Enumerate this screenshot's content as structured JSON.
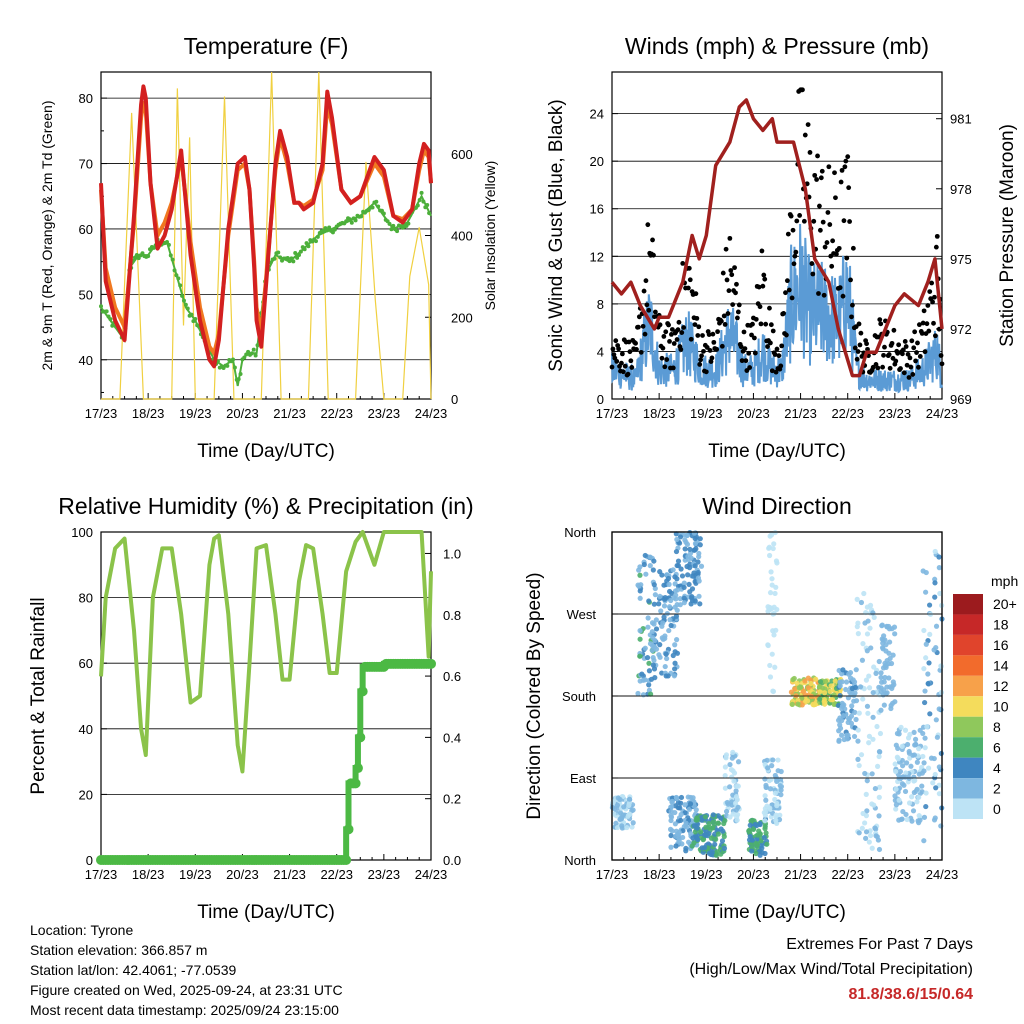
{
  "chart_data": [
    {
      "id": "temperature",
      "type": "line",
      "title": "Temperature (F)",
      "xlabel": "Time (Day/UTC)",
      "ylabel": "2m & 9m T (Red, Orange) & 2m Td (Green)",
      "ylabel_right": "Solar Insolation (Yellow)",
      "xlim": [
        0,
        7
      ],
      "x_ticks": [
        "17/23",
        "18/23",
        "19/23",
        "20/23",
        "21/23",
        "22/23",
        "23/23",
        "24/23"
      ],
      "ylim": [
        34,
        84
      ],
      "y_ticks": [
        40,
        50,
        60,
        70,
        80
      ],
      "y2lim": [
        0,
        800
      ],
      "y2_ticks": [
        0,
        200,
        400,
        600
      ],
      "gridlines": [
        40,
        50,
        60,
        70,
        80
      ],
      "series": [
        {
          "name": "2m T",
          "color": "#d32020",
          "x": [
            0,
            0.1,
            0.3,
            0.5,
            0.7,
            0.85,
            0.9,
            0.95,
            1.05,
            1.2,
            1.35,
            1.5,
            1.7,
            1.9,
            2.1,
            2.3,
            2.4,
            2.5,
            2.7,
            2.9,
            3.05,
            3.15,
            3.25,
            3.3,
            3.4,
            3.7,
            3.8,
            3.95,
            4.1,
            4.2,
            4.3,
            4.5,
            4.7,
            4.8,
            4.9,
            5.1,
            5.3,
            5.5,
            5.8,
            6.0,
            6.2,
            6.4,
            6.6,
            6.75,
            6.85,
            6.95,
            7.0
          ],
          "y": [
            67,
            52,
            46,
            43,
            62,
            79,
            81.8,
            80,
            67,
            57,
            59,
            63,
            72,
            56,
            46,
            40,
            39,
            43,
            60,
            70,
            71,
            66,
            54,
            46,
            42,
            70,
            75,
            71,
            64,
            64,
            63,
            64,
            70,
            81,
            77,
            66,
            64,
            65,
            71,
            69,
            62,
            61,
            63,
            70,
            73,
            72,
            67
          ]
        },
        {
          "name": "9m T",
          "color": "#f07820",
          "x": [
            0,
            0.1,
            0.3,
            0.5,
            0.7,
            0.85,
            0.9,
            0.95,
            1.05,
            1.2,
            1.35,
            1.5,
            1.7,
            1.9,
            2.1,
            2.3,
            2.4,
            2.5,
            2.7,
            2.9,
            3.05,
            3.15,
            3.25,
            3.3,
            3.4,
            3.7,
            3.8,
            3.95,
            4.1,
            4.2,
            4.3,
            4.5,
            4.7,
            4.8,
            4.9,
            5.1,
            5.3,
            5.5,
            5.8,
            6.0,
            6.2,
            6.4,
            6.6,
            6.75,
            6.85,
            6.95,
            7.0
          ],
          "y": [
            66,
            54,
            48,
            45,
            61,
            77,
            79.5,
            78,
            67,
            59,
            61,
            64,
            71,
            58,
            48,
            42,
            41,
            44,
            59,
            69,
            70,
            66,
            55,
            48,
            44,
            69,
            74,
            70,
            64,
            64,
            63.5,
            64.5,
            69,
            79,
            76,
            66,
            64,
            65,
            70,
            68,
            62,
            61.5,
            63,
            69,
            72,
            71,
            67
          ]
        },
        {
          "name": "2m Td",
          "color": "#4caf3a",
          "x": [
            0,
            0.2,
            0.4,
            0.5,
            0.6,
            0.8,
            1.0,
            1.2,
            1.4,
            1.6,
            1.8,
            2.0,
            2.2,
            2.4,
            2.6,
            2.8,
            2.9,
            3.0,
            3.1,
            3.3,
            3.5,
            3.7,
            4.0,
            4.3,
            4.6,
            4.9,
            5.2,
            5.5,
            5.8,
            6.0,
            6.2,
            6.5,
            6.8,
            7.0
          ],
          "y": [
            48,
            46,
            44,
            43,
            54,
            56,
            56,
            58,
            58,
            53,
            48,
            46,
            43,
            40,
            39,
            40,
            36,
            40,
            41,
            41,
            53,
            56,
            55,
            57,
            59,
            60,
            61,
            62,
            64,
            62,
            60,
            61,
            65,
            62
          ]
        },
        {
          "name": "Solar Insolation",
          "color": "#f0d040",
          "axis": "right",
          "x": [
            0,
            0.4,
            0.65,
            0.9,
            1.15,
            1.5,
            1.62,
            1.75,
            1.88,
            2.0,
            2.4,
            2.62,
            2.82,
            3.0,
            3.4,
            3.62,
            3.82,
            4.0,
            4.4,
            4.62,
            4.82,
            5.0,
            5.4,
            5.62,
            5.82,
            6.0,
            6.4,
            6.55,
            6.75,
            6.95,
            7.0
          ],
          "y": [
            0,
            0,
            700,
            0,
            0,
            0,
            760,
            180,
            640,
            0,
            0,
            740,
            0,
            0,
            0,
            800,
            0,
            0,
            0,
            800,
            0,
            0,
            0,
            580,
            240,
            0,
            0,
            300,
            420,
            280,
            0
          ]
        }
      ]
    },
    {
      "id": "winds",
      "type": "line+scatter",
      "title": "Winds (mph) & Pressure (mb)",
      "xlabel": "Time (Day/UTC)",
      "ylabel": "Sonic Wind & Gust (Blue, Black)",
      "ylabel_right": "Station Pressure (Maroon)",
      "xlim": [
        0,
        7
      ],
      "x_ticks": [
        "17/23",
        "18/23",
        "19/23",
        "20/23",
        "21/23",
        "22/23",
        "23/23",
        "24/23"
      ],
      "ylim": [
        0,
        27.5
      ],
      "y_ticks": [
        0,
        4,
        8,
        12,
        16,
        20,
        24
      ],
      "y2lim": [
        969,
        983
      ],
      "y2_ticks": [
        969,
        972,
        975,
        978,
        981
      ],
      "gridlines": [
        4,
        8,
        12,
        16,
        20,
        24
      ],
      "series": [
        {
          "name": "Sonic Wind",
          "color": "#5b9bd5",
          "x": [
            0,
            0.5,
            0.8,
            1.0,
            1.3,
            1.6,
            1.9,
            2.2,
            2.5,
            2.8,
            3.0,
            3.2,
            3.4,
            3.6,
            3.8,
            4.0,
            4.2,
            4.5,
            4.8,
            5.0,
            5.2,
            5.4,
            5.7,
            6.0,
            6.3,
            6.6,
            6.9,
            7.0
          ],
          "y": [
            3,
            2,
            8,
            3,
            3,
            6,
            3,
            3,
            7,
            3,
            3,
            5,
            3,
            3,
            10,
            12,
            9,
            9,
            8,
            11,
            3,
            2,
            2,
            2,
            2,
            3,
            5,
            2
          ]
        },
        {
          "name": "Gust",
          "color": "#000000",
          "x": [
            0,
            0.5,
            0.8,
            1.0,
            1.3,
            1.6,
            1.9,
            2.2,
            2.5,
            2.8,
            3.0,
            3.2,
            3.4,
            3.6,
            3.8,
            4.0,
            4.2,
            4.5,
            4.8,
            5.0,
            5.2,
            5.4,
            5.7,
            6.0,
            6.3,
            6.6,
            6.9,
            7.0
          ],
          "y": [
            5,
            4,
            14,
            6,
            5,
            12,
            5,
            5,
            13,
            5,
            6,
            12,
            5,
            5,
            16,
            24,
            20,
            17,
            16,
            18,
            6,
            4,
            6,
            5,
            4,
            6,
            12,
            5
          ]
        },
        {
          "name": "Station Pressure",
          "color": "#a0201e",
          "axis": "right",
          "x": [
            0,
            0.2,
            0.4,
            0.6,
            0.9,
            1.0,
            1.2,
            1.5,
            1.7,
            1.85,
            2.0,
            2.2,
            2.5,
            2.7,
            2.85,
            3.0,
            3.2,
            3.4,
            3.5,
            3.65,
            3.85,
            4.1,
            4.3,
            4.6,
            4.8,
            4.95,
            5.1,
            5.25,
            5.4,
            5.6,
            5.8,
            6.0,
            6.2,
            6.5,
            6.7,
            6.85,
            7.0
          ],
          "y": [
            974,
            973.5,
            974,
            973,
            972,
            972.5,
            972.5,
            974,
            976,
            975,
            976,
            979,
            980,
            981.5,
            981.8,
            981,
            980.5,
            981,
            980,
            980,
            980,
            978,
            975,
            974,
            972,
            971,
            970,
            970,
            971,
            971,
            972,
            973,
            973.5,
            973,
            974,
            975,
            972
          ]
        }
      ]
    },
    {
      "id": "humidity",
      "type": "line",
      "title": "Relative Humidity (%) & Precipitation (in)",
      "xlabel": "Time (Day/UTC)",
      "ylabel": "Percent & Total Rainfall",
      "xlim": [
        0,
        7
      ],
      "x_ticks": [
        "17/23",
        "18/23",
        "19/23",
        "20/23",
        "21/23",
        "22/23",
        "23/23",
        "24/23"
      ],
      "ylim": [
        0,
        100
      ],
      "y_ticks": [
        0,
        20,
        40,
        60,
        80,
        100
      ],
      "y2lim": [
        0,
        1.07
      ],
      "y2_ticks": [
        0.0,
        0.2,
        0.4,
        0.6,
        0.8,
        1.0
      ],
      "gridlines": [
        0,
        20,
        40,
        60,
        80,
        100
      ],
      "series": [
        {
          "name": "Relative Humidity",
          "color": "#8bc34a",
          "x": [
            0,
            0.1,
            0.3,
            0.5,
            0.7,
            0.85,
            0.95,
            1.1,
            1.3,
            1.5,
            1.7,
            1.9,
            2.1,
            2.3,
            2.4,
            2.5,
            2.7,
            2.9,
            3.0,
            3.15,
            3.3,
            3.5,
            3.7,
            3.85,
            4.0,
            4.2,
            4.35,
            4.5,
            4.7,
            4.85,
            5.0,
            5.2,
            5.4,
            5.55,
            5.8,
            6.0,
            6.5,
            6.8,
            6.95,
            7.0
          ],
          "y": [
            56,
            80,
            95,
            98,
            70,
            40,
            32,
            80,
            95,
            95,
            75,
            48,
            50,
            90,
            98,
            99,
            75,
            35,
            27,
            60,
            95,
            96,
            75,
            55,
            55,
            85,
            96,
            95,
            75,
            57,
            57,
            88,
            97,
            100,
            90,
            100,
            100,
            100,
            62,
            88
          ]
        },
        {
          "name": "Total Precipitation",
          "color": "#4cb944",
          "axis": "right",
          "x": [
            0,
            5.15,
            5.2,
            5.25,
            5.4,
            5.45,
            5.5,
            5.55,
            6.0,
            7.0
          ],
          "y": [
            0,
            0,
            0.1,
            0.25,
            0.3,
            0.4,
            0.55,
            0.63,
            0.64,
            0.64
          ]
        }
      ]
    },
    {
      "id": "wind_direction",
      "type": "scatter",
      "title": "Wind Direction",
      "xlabel": "Time (Day/UTC)",
      "ylabel": "Direction (Colored By Speed)",
      "xlim": [
        0,
        7
      ],
      "x_ticks": [
        "17/23",
        "18/23",
        "19/23",
        "20/23",
        "21/23",
        "22/23",
        "23/23",
        "24/23"
      ],
      "ylim": [
        0,
        360
      ],
      "y_ticks": [
        "North",
        "East",
        "South",
        "West",
        "North"
      ],
      "gridlines": [
        90,
        180,
        270
      ],
      "colorbar": {
        "title": "mph",
        "labels": [
          "20+",
          "18",
          "16",
          "14",
          "12",
          "10",
          "8",
          "6",
          "4",
          "2",
          "0"
        ],
        "colors": [
          "#9c1b1e",
          "#c62828",
          "#e0442c",
          "#f26b2c",
          "#f7a14a",
          "#f4dc5c",
          "#8fc85c",
          "#4caf6e",
          "#3f86c0",
          "#7eb7e0",
          "#bde3f5"
        ]
      },
      "clusters": [
        {
          "x": [
            0.0,
            0.45
          ],
          "dir": [
            35,
            70
          ],
          "speed": [
            0,
            4
          ]
        },
        {
          "x": [
            0.55,
            0.9
          ],
          "dir": [
            180,
            340
          ],
          "speed": [
            2,
            7
          ]
        },
        {
          "x": [
            0.85,
            1.4
          ],
          "dir": [
            200,
            320
          ],
          "speed": [
            2,
            6
          ]
        },
        {
          "x": [
            1.35,
            1.9
          ],
          "dir": [
            280,
            360
          ],
          "speed": [
            2,
            6
          ]
        },
        {
          "x": [
            1.2,
            1.8
          ],
          "dir": [
            10,
            70
          ],
          "speed": [
            2,
            5
          ]
        },
        {
          "x": [
            1.7,
            2.4
          ],
          "dir": [
            5,
            50
          ],
          "speed": [
            4,
            8
          ]
        },
        {
          "x": [
            2.4,
            2.7
          ],
          "dir": [
            40,
            120
          ],
          "speed": [
            1,
            3
          ]
        },
        {
          "x": [
            2.9,
            3.3
          ],
          "dir": [
            5,
            45
          ],
          "speed": [
            4,
            8
          ]
        },
        {
          "x": [
            3.2,
            3.6
          ],
          "dir": [
            40,
            110
          ],
          "speed": [
            1,
            3
          ]
        },
        {
          "x": [
            3.3,
            3.5
          ],
          "dir": [
            180,
            360
          ],
          "speed": [
            0,
            2
          ]
        },
        {
          "x": [
            3.8,
            4.4
          ],
          "dir": [
            170,
            200
          ],
          "speed": [
            8,
            14
          ]
        },
        {
          "x": [
            4.4,
            4.85
          ],
          "dir": [
            170,
            200
          ],
          "speed": [
            6,
            12
          ]
        },
        {
          "x": [
            4.8,
            5.2
          ],
          "dir": [
            130,
            210
          ],
          "speed": [
            2,
            5
          ]
        },
        {
          "x": [
            5.2,
            5.7
          ],
          "dir": [
            10,
            300
          ],
          "speed": [
            0,
            3
          ]
        },
        {
          "x": [
            5.7,
            6.0
          ],
          "dir": [
            160,
            260
          ],
          "speed": [
            2,
            4
          ]
        },
        {
          "x": [
            6.0,
            6.6
          ],
          "dir": [
            40,
            150
          ],
          "speed": [
            1,
            4
          ]
        },
        {
          "x": [
            6.6,
            7.0
          ],
          "dir": [
            20,
            340
          ],
          "speed": [
            1,
            5
          ]
        }
      ]
    }
  ],
  "footer": {
    "location": "Location: Tyrone",
    "elevation": "Station elevation: 366.857 m",
    "latlon": "Station lat/lon: 42.4061; -77.0539",
    "created": "Figure created on Wed, 2025-09-24, at 23:31 UTC",
    "recent": "Most recent data timestamp: 2025/09/24 23:15:00"
  },
  "extremes": {
    "title": "Extremes For Past 7 Days",
    "subtitle": "(High/Low/Max Wind/Total Precipitation)",
    "values": "81.8/38.6/15/0.64"
  }
}
